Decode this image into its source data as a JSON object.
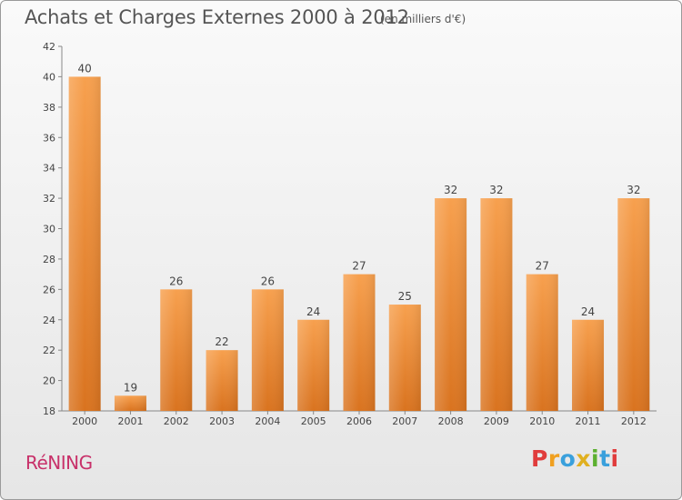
{
  "header": {
    "title": "Achats et Charges Externes 2000 à 2012",
    "unit": "(en milliers d'€)"
  },
  "footer": {
    "commune": "RéNING",
    "brand_letters": [
      "P",
      "r",
      "o",
      "x",
      "i",
      "t",
      "i"
    ],
    "brand_colors": [
      "#e03c3c",
      "#f0a020",
      "#3aa0dc",
      "#e0b020",
      "#5cb030",
      "#3aa0dc",
      "#e03c3c"
    ]
  },
  "chart_data": {
    "type": "bar",
    "title": "Achats et Charges Externes 2000 à 2012",
    "categories": [
      "2000",
      "2001",
      "2002",
      "2003",
      "2004",
      "2005",
      "2006",
      "2007",
      "2008",
      "2009",
      "2010",
      "2011",
      "2012"
    ],
    "values": [
      40,
      19,
      26,
      22,
      26,
      24,
      27,
      25,
      32,
      32,
      27,
      24,
      32
    ],
    "ylim": [
      18,
      42
    ],
    "yticks": [
      18,
      20,
      22,
      24,
      26,
      28,
      30,
      32,
      34,
      36,
      38,
      40,
      42
    ],
    "grid": false,
    "bar_color_top": "#f7a04e",
    "bar_color_bottom": "#d9731f",
    "xlabel": "",
    "ylabel": ""
  }
}
